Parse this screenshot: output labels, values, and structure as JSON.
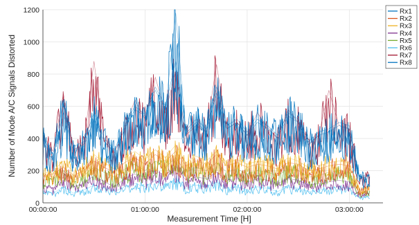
{
  "chart_data": {
    "type": "line",
    "title": "",
    "xlabel": "Measurement Time [H]",
    "ylabel": "Number of Mode A/C Signals Distorted",
    "ylim": [
      0,
      1200
    ],
    "xlim_hours": [
      0,
      3.33
    ],
    "y_ticks": [
      0,
      200,
      400,
      600,
      800,
      1000,
      1200
    ],
    "x_ticks": [
      {
        "hours": 0,
        "label": "00:00:00"
      },
      {
        "hours": 1,
        "label": "01:00:00"
      },
      {
        "hours": 2,
        "label": "02:00:00"
      },
      {
        "hours": 3,
        "label": "03:00:00"
      }
    ],
    "grid": true,
    "legend_position": "top-right outside",
    "x_hours": [
      0,
      0.1,
      0.2,
      0.3,
      0.4,
      0.5,
      0.6,
      0.7,
      0.8,
      0.9,
      1.0,
      1.1,
      1.2,
      1.3,
      1.4,
      1.5,
      1.6,
      1.7,
      1.8,
      1.9,
      2.0,
      2.1,
      2.2,
      2.3,
      2.4,
      2.5,
      2.6,
      2.7,
      2.8,
      2.9,
      3.0,
      3.1,
      3.2
    ],
    "series": [
      {
        "name": "Rx1",
        "color": "#0072BD",
        "values": [
          400,
          300,
          620,
          350,
          380,
          560,
          400,
          330,
          480,
          600,
          550,
          720,
          600,
          880,
          450,
          520,
          460,
          720,
          480,
          520,
          440,
          520,
          480,
          420,
          560,
          520,
          380,
          440,
          460,
          500,
          480,
          160,
          180
        ]
      },
      {
        "name": "Rx2",
        "color": "#D95319",
        "values": [
          160,
          180,
          220,
          170,
          200,
          260,
          220,
          190,
          250,
          280,
          240,
          300,
          260,
          320,
          230,
          260,
          240,
          300,
          230,
          250,
          220,
          240,
          230,
          210,
          250,
          240,
          200,
          210,
          230,
          240,
          230,
          80,
          90
        ]
      },
      {
        "name": "Rx3",
        "color": "#EDB120",
        "values": [
          180,
          200,
          260,
          190,
          220,
          300,
          250,
          210,
          280,
          320,
          270,
          330,
          280,
          360,
          250,
          290,
          260,
          320,
          250,
          270,
          240,
          260,
          250,
          230,
          280,
          260,
          220,
          230,
          250,
          260,
          250,
          90,
          100
        ]
      },
      {
        "name": "Rx4",
        "color": "#7E2F8E",
        "values": [
          110,
          90,
          160,
          100,
          120,
          170,
          130,
          100,
          150,
          180,
          160,
          200,
          170,
          230,
          140,
          160,
          150,
          190,
          140,
          150,
          130,
          150,
          140,
          120,
          150,
          140,
          110,
          120,
          130,
          140,
          130,
          50,
          60
        ]
      },
      {
        "name": "Rx5",
        "color": "#77AC30",
        "values": [
          140,
          150,
          200,
          140,
          170,
          220,
          190,
          160,
          210,
          240,
          200,
          260,
          220,
          280,
          190,
          220,
          200,
          250,
          190,
          210,
          180,
          200,
          190,
          170,
          210,
          200,
          160,
          170,
          190,
          200,
          190,
          60,
          70
        ]
      },
      {
        "name": "Rx6",
        "color": "#4DBEEE",
        "values": [
          70,
          60,
          100,
          60,
          80,
          110,
          90,
          70,
          100,
          120,
          100,
          140,
          110,
          150,
          90,
          110,
          100,
          130,
          90,
          100,
          80,
          100,
          90,
          70,
          100,
          90,
          70,
          80,
          90,
          100,
          90,
          30,
          40
        ]
      },
      {
        "name": "Rx7",
        "color": "#A2142F",
        "values": [
          420,
          320,
          680,
          330,
          360,
          880,
          380,
          310,
          460,
          640,
          520,
          780,
          560,
          820,
          420,
          480,
          440,
          860,
          460,
          500,
          420,
          560,
          470,
          400,
          580,
          500,
          360,
          420,
          700,
          480,
          460,
          150,
          170
        ]
      },
      {
        "name": "Rx8",
        "color": "#0072BD",
        "values": [
          380,
          280,
          560,
          320,
          350,
          520,
          380,
          320,
          460,
          580,
          540,
          700,
          580,
          1180,
          430,
          500,
          440,
          680,
          460,
          500,
          420,
          500,
          460,
          400,
          540,
          500,
          360,
          420,
          440,
          480,
          460,
          150,
          170
        ]
      }
    ]
  }
}
